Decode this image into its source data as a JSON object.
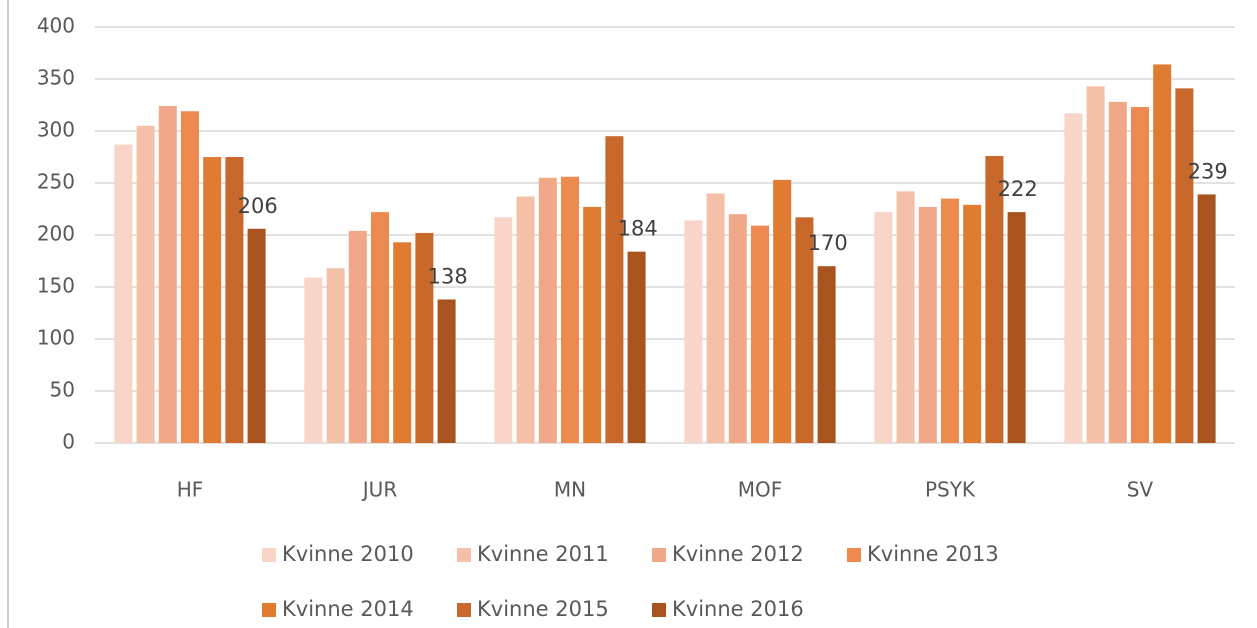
{
  "chart_data": {
    "type": "bar",
    "categories": [
      "HF",
      "JUR",
      "MN",
      "MOF",
      "PSYK",
      "SV"
    ],
    "series": [
      {
        "name": "Kvinne 2010",
        "color": "#f8d5c8",
        "values": [
          287,
          159,
          217,
          214,
          222,
          317
        ]
      },
      {
        "name": "Kvinne 2011",
        "color": "#f5c0a8",
        "values": [
          305,
          168,
          237,
          240,
          242,
          343
        ]
      },
      {
        "name": "Kvinne 2012",
        "color": "#f0a888",
        "values": [
          324,
          204,
          255,
          220,
          227,
          328
        ]
      },
      {
        "name": "Kvinne 2013",
        "color": "#ed8a50",
        "values": [
          319,
          222,
          256,
          209,
          235,
          323
        ]
      },
      {
        "name": "Kvinne 2014",
        "color": "#e07b32",
        "values": [
          275,
          193,
          227,
          253,
          229,
          364
        ]
      },
      {
        "name": "Kvinne 2015",
        "color": "#c8682a",
        "values": [
          275,
          202,
          295,
          217,
          276,
          341
        ]
      },
      {
        "name": "Kvinne 2016",
        "color": "#a9541f",
        "values": [
          206,
          138,
          184,
          170,
          222,
          239
        ],
        "data_labels": true
      }
    ],
    "ylim": [
      0,
      400
    ],
    "yticks": [
      0,
      50,
      100,
      150,
      200,
      250,
      300,
      350,
      400
    ],
    "grid": true,
    "legend": "bottom"
  }
}
